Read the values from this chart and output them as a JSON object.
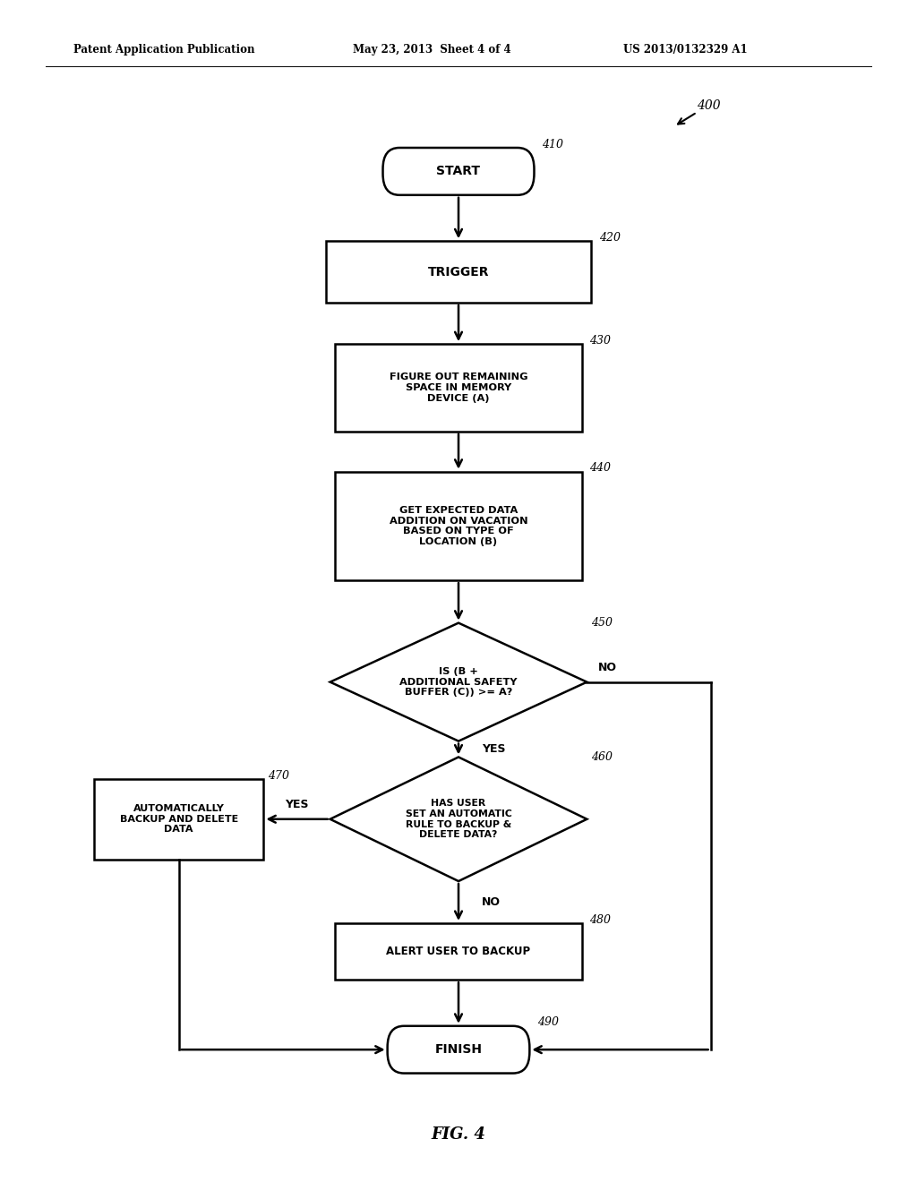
{
  "bg_color": "#ffffff",
  "header_left": "Patent Application Publication",
  "header_mid": "May 23, 2013  Sheet 4 of 4",
  "header_right": "US 2013/0132329 A1",
  "fig_label": "FIG. 4",
  "lw": 1.8
}
